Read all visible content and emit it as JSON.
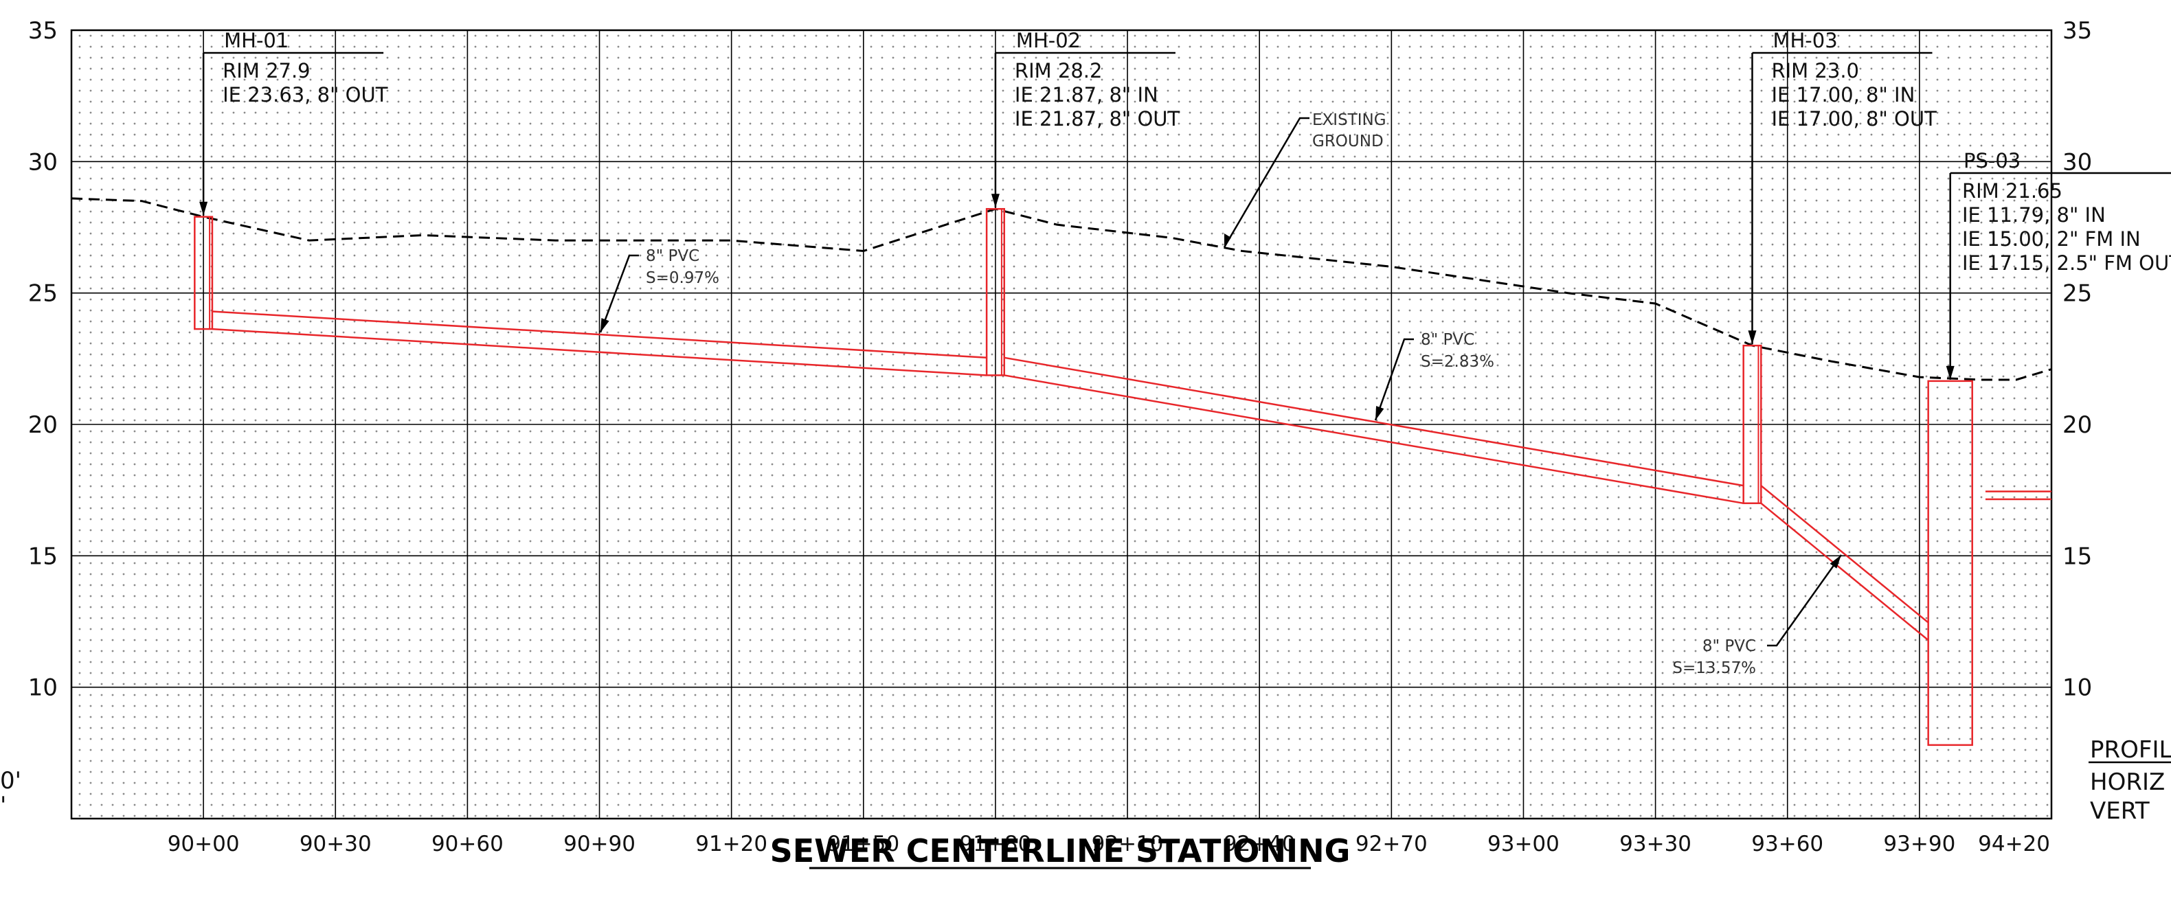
{
  "y_axis": {
    "ticks": [
      35,
      30,
      25,
      20,
      15,
      10
    ],
    "range": [
      5,
      35
    ]
  },
  "x_axis": {
    "stations": [
      9000,
      9030,
      9060,
      9090,
      9120,
      9150,
      9180,
      9210,
      9240,
      9270,
      9300,
      9330,
      9360,
      9390,
      9420
    ],
    "tick_labels": [
      "90+00",
      "90+30",
      "90+60",
      "90+90",
      "91+20",
      "91+50",
      "91+80",
      "92+10",
      "92+40",
      "92+70",
      "93+00",
      "93+30",
      "93+60",
      "93+90",
      "94+20"
    ],
    "range": [
      8970,
      9420
    ],
    "title": "SEWER CENTERLINE STATIONING"
  },
  "colors": {
    "pipe": "#e8262a",
    "grid": "#000000",
    "ground": "#000000",
    "dots": "#8a8a8a"
  },
  "structures": [
    {
      "id": "MH-01",
      "station": 9000,
      "rim": 27.9,
      "lines": [
        "RIM 27.9",
        "IE 23.63, 8\" OUT"
      ]
    },
    {
      "id": "MH-02",
      "station": 9180,
      "rim": 28.2,
      "lines": [
        "RIM 28.2",
        "IE 21.87, 8\" IN",
        "IE 21.87, 8\" OUT"
      ]
    },
    {
      "id": "MH-03",
      "station": 9352,
      "rim": 23.0,
      "lines": [
        "RIM 23.0",
        "IE 17.00, 8\" IN",
        "IE 17.00, 8\" OUT"
      ]
    },
    {
      "id": "PS-03",
      "station": 9397,
      "rim": 21.65,
      "lines": [
        "RIM 21.65",
        "IE 11.79, 8\" IN",
        "IE 15.00, 2\" FM IN",
        "IE 17.15, 2.5\" FM OUT"
      ]
    }
  ],
  "pipes": [
    {
      "label_1": "8\" PVC",
      "label_2": "S=0.97%",
      "from_station": 9002,
      "to_station": 9178,
      "from_ie": 23.63,
      "to_ie": 21.87
    },
    {
      "label_1": "8\" PVC",
      "label_2": "S=2.83%",
      "from_station": 9182,
      "to_station": 9350,
      "from_ie": 21.87,
      "to_ie": 17.0
    },
    {
      "label_1": "8\" PVC",
      "label_2": "S=13.57%",
      "from_station": 9354,
      "to_station": 9392,
      "from_ie": 17.0,
      "to_ie": 11.79
    }
  ],
  "existing_ground": {
    "label_1": "EXISTING",
    "label_2": "GROUND",
    "points": [
      [
        8970,
        28.6
      ],
      [
        8986,
        28.5
      ],
      [
        9000,
        27.9
      ],
      [
        9024,
        27.0
      ],
      [
        9050,
        27.2
      ],
      [
        9080,
        27.0
      ],
      [
        9120,
        27.0
      ],
      [
        9150,
        26.6
      ],
      [
        9180,
        28.2
      ],
      [
        9194,
        27.6
      ],
      [
        9220,
        27.1
      ],
      [
        9236,
        26.6
      ],
      [
        9270,
        26.0
      ],
      [
        9310,
        25.0
      ],
      [
        9330,
        24.6
      ],
      [
        9352,
        23.0
      ],
      [
        9370,
        22.4
      ],
      [
        9390,
        21.8
      ],
      [
        9404,
        21.7
      ],
      [
        9412,
        21.7
      ],
      [
        9420,
        22.1
      ]
    ]
  },
  "legend": {
    "title": "PROFIL",
    "line_1": "HORIZ",
    "line_2": "VERT"
  },
  "left_clip": {
    "line_1": "0'",
    "line_2": "'"
  }
}
